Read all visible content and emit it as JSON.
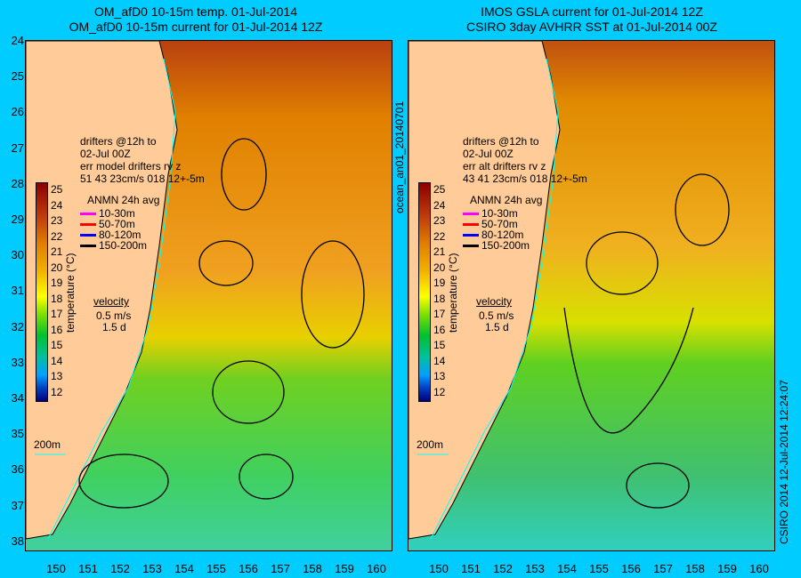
{
  "left": {
    "title1": "OM_afD0 10-15m temp. 01-Jul-2014",
    "title2": "OM_afD0 10-15m current for 01-Jul-2014 12Z",
    "drifters": [
      "drifters @12h to",
      "02-Jul 00Z",
      "err model drifters rv z",
      "51   43    23cm/s 018 12+-5m"
    ]
  },
  "right": {
    "title1": "IMOS GSLA current for 01-Jul-2014 12Z",
    "title2": "CSIRO 3day AVHRR SST at 01-Jul-2014 00Z",
    "drifters": [
      "drifters @12h to",
      "02-Jul 00Z",
      "err alt drifters rv z",
      "43 41 23cm/s 018 12+-5m"
    ]
  },
  "y_ticks": [
    "24",
    "25",
    "26",
    "27",
    "28",
    "29",
    "30",
    "31",
    "32",
    "33",
    "34",
    "35",
    "36",
    "37",
    "38"
  ],
  "x_ticks": [
    "150",
    "151",
    "152",
    "153",
    "154",
    "155",
    "156",
    "157",
    "158",
    "159",
    "160"
  ],
  "colorbar": {
    "label": "temperature (°C)",
    "ticks": [
      "25",
      "24",
      "23",
      "22",
      "21",
      "20",
      "19",
      "18",
      "17",
      "16",
      "15",
      "14",
      "13",
      "12"
    ],
    "range": [
      11.5,
      25.5
    ]
  },
  "legend": {
    "title": "ANMN 24h avg",
    "items": [
      {
        "label": "10-30m",
        "color": "#ff00ff"
      },
      {
        "label": "50-70m",
        "color": "#ff0000"
      },
      {
        "label": "80-120m",
        "color": "#0000ff"
      },
      {
        "label": "150-200m",
        "color": "#000000"
      }
    ]
  },
  "velocity": {
    "label": "velocity",
    "speed": "0.5 m/s",
    "time": "1.5 d"
  },
  "isobath": "200m",
  "side_label": "ocean_an01_20140701",
  "credit": "CSIRO 2014   12-Jul-2014 12:24:07"
}
